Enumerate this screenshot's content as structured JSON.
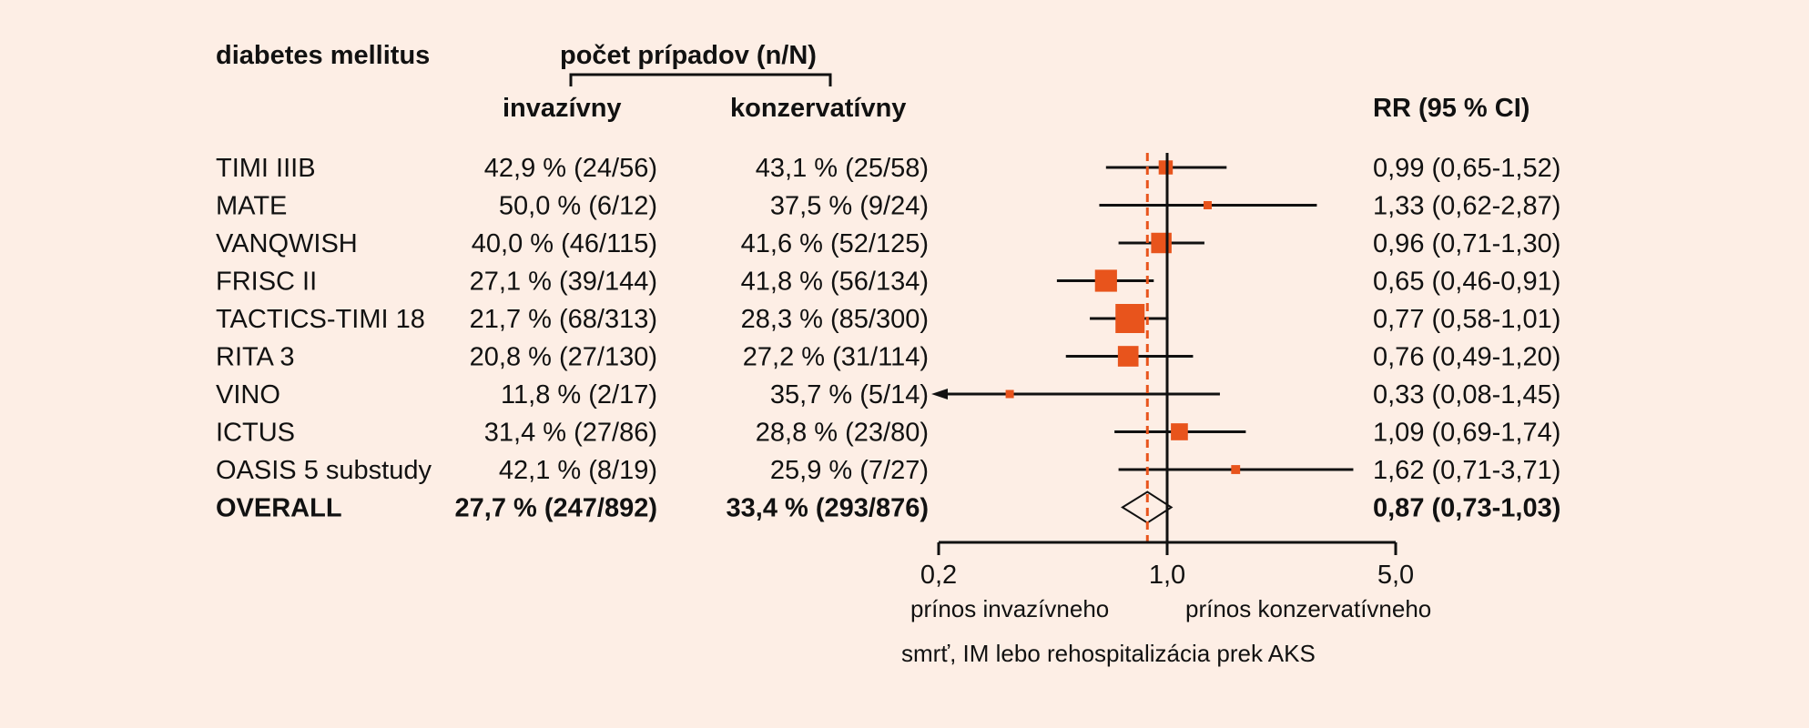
{
  "chart_data": {
    "type": "forest",
    "title": "diabetes mellitus",
    "header": {
      "cases": "počet prípadov (n/N)",
      "invasive": "invazívny",
      "conservative": "konzervatívny",
      "rr": "RR (95 % CI)"
    },
    "studies": [
      {
        "name": "TIMI IIIB",
        "invasive": "42,9 % (24/56)",
        "conservative": "43,1 % (25/58)",
        "rr_text": "0,99 (0,65-1,52)",
        "rr": 0.99,
        "lo": 0.65,
        "hi": 1.52
      },
      {
        "name": "MATE",
        "invasive": "50,0 % (6/12)",
        "conservative": "37,5 % (9/24)",
        "rr_text": "1,33 (0,62-2,87)",
        "rr": 1.33,
        "lo": 0.62,
        "hi": 2.87
      },
      {
        "name": "VANQWISH",
        "invasive": "40,0 % (46/115)",
        "conservative": "41,6 % (52/125)",
        "rr_text": "0,96 (0,71-1,30)",
        "rr": 0.96,
        "lo": 0.71,
        "hi": 1.3
      },
      {
        "name": "FRISC II",
        "invasive": "27,1 % (39/144)",
        "conservative": "41,8 % (56/134)",
        "rr_text": "0,65 (0,46-0,91)",
        "rr": 0.65,
        "lo": 0.46,
        "hi": 0.91
      },
      {
        "name": "TACTICS-TIMI 18",
        "invasive": "21,7 % (68/313)",
        "conservative": "28,3 % (85/300)",
        "rr_text": "0,77 (0,58-1,01)",
        "rr": 0.77,
        "lo": 0.58,
        "hi": 1.01
      },
      {
        "name": "RITA 3",
        "invasive": "20,8 % (27/130)",
        "conservative": "27,2 % (31/114)",
        "rr_text": "0,76 (0,49-1,20)",
        "rr": 0.76,
        "lo": 0.49,
        "hi": 1.2
      },
      {
        "name": "VINO",
        "invasive": "11,8 % (2/17)",
        "conservative": "35,7 % (5/14)",
        "rr_text": "0,33 (0,08-1,45)",
        "rr": 0.33,
        "lo": 0.08,
        "hi": 1.45
      },
      {
        "name": "ICTUS",
        "invasive": "31,4 % (27/86)",
        "conservative": "28,8 % (23/80)",
        "rr_text": "1,09 (0,69-1,74)",
        "rr": 1.09,
        "lo": 0.69,
        "hi": 1.74
      },
      {
        "name": "OASIS 5 substudy",
        "invasive": "42,1 % (8/19)",
        "conservative": "25,9 % (7/27)",
        "rr_text": "1,62 (0,71-3,71)",
        "rr": 1.62,
        "lo": 0.71,
        "hi": 3.71
      }
    ],
    "overall": {
      "name": "OVERALL",
      "invasive": "27,7 % (247/892)",
      "conservative": "33,4 % (293/876)",
      "rr_text": "0,87 (0,73-1,03)",
      "rr": 0.87,
      "lo": 0.73,
      "hi": 1.03
    },
    "x_scale": "log",
    "x_ticks": [
      {
        "value": 0.2,
        "label": "0,2"
      },
      {
        "value": 1.0,
        "label": "1,0"
      },
      {
        "value": 5.0,
        "label": "5,0"
      }
    ],
    "favours_left": "prínos invazívneho",
    "favours_right": "prínos konzervatívneho",
    "xlabel": "smrť, IM lebo rehospitalizácia prek AKS",
    "colors": {
      "background": "#fdeee5",
      "marker": "#e8541c",
      "text": "#111111",
      "reference_line": "#e8541c"
    }
  }
}
